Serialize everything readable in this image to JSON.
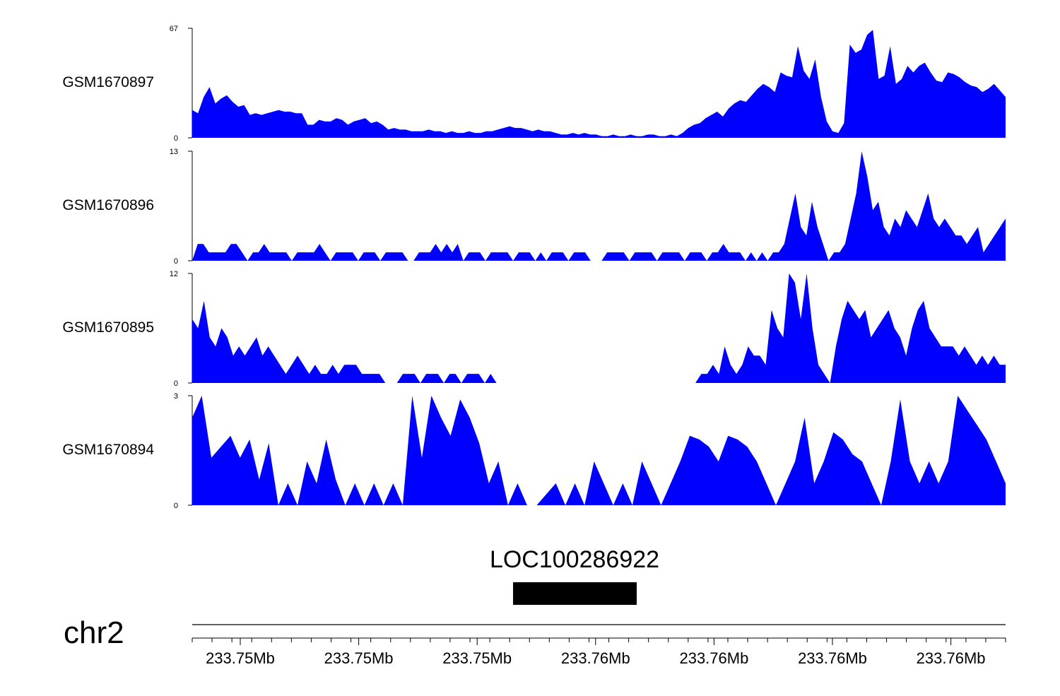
{
  "colors": {
    "signal": "#0000ff",
    "gene": "#000000",
    "axis": "#000000",
    "background": "#ffffff"
  },
  "chart_data": {
    "type": "area",
    "chromosome": "chr2",
    "x_tick_labels": [
      "233.75Mb",
      "233.75Mb",
      "233.75Mb",
      "233.76Mb",
      "233.76Mb",
      "233.76Mb",
      "233.76Mb"
    ],
    "gene": {
      "name": "LOC100286922"
    },
    "tracks": [
      {
        "name": "GSM1670897",
        "ylim": [
          0,
          67
        ],
        "y_tick_labels": [
          "0",
          "67"
        ],
        "values": [
          17,
          15,
          25,
          31,
          21,
          24,
          26,
          22,
          19,
          20,
          14,
          15,
          14,
          15,
          16,
          17,
          16,
          16,
          15,
          15,
          8,
          8,
          11,
          10,
          10,
          12,
          11,
          8,
          10,
          11,
          12,
          9,
          10,
          8,
          5,
          6,
          5,
          5,
          4,
          4,
          4,
          5,
          4,
          4,
          3,
          4,
          3,
          3,
          4,
          3,
          3,
          4,
          4,
          5,
          6,
          7,
          6,
          6,
          5,
          4,
          5,
          4,
          4,
          3,
          2,
          2,
          3,
          2,
          3,
          2,
          2,
          1,
          1,
          2,
          1,
          1,
          2,
          1,
          1,
          2,
          2,
          1,
          1,
          2,
          1,
          3,
          6,
          8,
          9,
          12,
          14,
          16,
          13,
          18,
          21,
          23,
          22,
          26,
          30,
          33,
          31,
          28,
          40,
          38,
          37,
          56,
          41,
          36,
          48,
          25,
          10,
          4,
          3,
          9,
          57,
          52,
          54,
          63,
          66,
          36,
          38,
          56,
          33,
          36,
          44,
          40,
          44,
          46,
          40,
          35,
          34,
          40,
          39,
          37,
          34,
          32,
          31,
          28,
          30,
          33,
          29,
          25
        ]
      },
      {
        "name": "GSM1670896",
        "ylim": [
          0,
          13
        ],
        "y_tick_labels": [
          "0",
          "13"
        ],
        "values": [
          0,
          2,
          2,
          1,
          1,
          1,
          1,
          2,
          2,
          1,
          0,
          1,
          1,
          2,
          1,
          1,
          1,
          1,
          0,
          1,
          1,
          1,
          1,
          2,
          1,
          0,
          1,
          1,
          1,
          1,
          0,
          1,
          1,
          1,
          0,
          1,
          1,
          1,
          1,
          0,
          0,
          1,
          1,
          1,
          2,
          1,
          2,
          1,
          2,
          0,
          1,
          1,
          1,
          0,
          1,
          1,
          1,
          1,
          0,
          1,
          1,
          1,
          0,
          1,
          0,
          1,
          1,
          1,
          0,
          1,
          1,
          1,
          0,
          0,
          0,
          1,
          1,
          1,
          1,
          0,
          1,
          1,
          1,
          1,
          0,
          1,
          1,
          1,
          1,
          0,
          1,
          1,
          1,
          0,
          1,
          1,
          2,
          1,
          1,
          1,
          0,
          1,
          0,
          1,
          0,
          1,
          1,
          2,
          5,
          8,
          4,
          3,
          7,
          4,
          2,
          0,
          1,
          1,
          2,
          5,
          8,
          13,
          10,
          6,
          7,
          4,
          3,
          5,
          4,
          6,
          5,
          4,
          6,
          8,
          5,
          4,
          5,
          4,
          3,
          3,
          2,
          3,
          4,
          1,
          2,
          3,
          4,
          5
        ]
      },
      {
        "name": "GSM1670895",
        "ylim": [
          0,
          12
        ],
        "y_tick_labels": [
          "0",
          "12"
        ],
        "values": [
          7,
          6,
          9,
          5,
          4,
          6,
          5,
          3,
          4,
          3,
          4,
          5,
          3,
          4,
          3,
          2,
          1,
          2,
          3,
          2,
          1,
          2,
          1,
          1,
          2,
          1,
          2,
          2,
          2,
          1,
          1,
          1,
          1,
          0,
          0,
          0,
          1,
          1,
          1,
          0,
          1,
          1,
          1,
          0,
          1,
          1,
          0,
          1,
          1,
          1,
          0,
          1,
          0,
          0,
          0,
          0,
          0,
          0,
          0,
          0,
          0,
          0,
          0,
          0,
          0,
          0,
          0,
          0,
          0,
          0,
          0,
          0,
          0,
          0,
          0,
          0,
          0,
          0,
          0,
          0,
          0,
          0,
          0,
          0,
          0,
          0,
          0,
          1,
          1,
          2,
          1,
          4,
          2,
          1,
          2,
          4,
          3,
          3,
          2,
          8,
          6,
          5,
          12,
          11,
          7,
          12,
          6,
          2,
          1,
          0,
          4,
          7,
          9,
          8,
          7,
          8,
          5,
          6,
          7,
          8,
          6,
          5,
          3,
          6,
          8,
          9,
          6,
          5,
          4,
          4,
          4,
          3,
          4,
          3,
          2,
          3,
          2,
          3,
          2,
          2
        ]
      },
      {
        "name": "GSM1670894",
        "ylim": [
          0,
          3
        ],
        "y_tick_labels": [
          "0",
          "3"
        ],
        "values": [
          2.4,
          3,
          1.3,
          1.6,
          1.9,
          1.3,
          1.8,
          0.7,
          1.7,
          0,
          0.6,
          0,
          1.2,
          0.6,
          1.8,
          0.7,
          0,
          0.6,
          0,
          0.6,
          0,
          0.6,
          0,
          3,
          1.3,
          3,
          2.4,
          1.9,
          2.9,
          2.4,
          1.7,
          0.6,
          1.2,
          0,
          0.6,
          0,
          0,
          0.3,
          0.6,
          0,
          0.6,
          0,
          1.2,
          0.6,
          0,
          0.6,
          0,
          1.2,
          0.6,
          0,
          0.6,
          1.2,
          1.9,
          1.8,
          1.6,
          1.2,
          1.9,
          1.8,
          1.6,
          1.2,
          0.6,
          0,
          0.6,
          1.2,
          2.4,
          0.6,
          1.2,
          2,
          1.8,
          1.4,
          1.2,
          0.6,
          0,
          1.2,
          2.9,
          1.2,
          0.6,
          1.2,
          0.6,
          1.2,
          3,
          2.6,
          2.2,
          1.8,
          1.2,
          0.6
        ]
      }
    ]
  }
}
